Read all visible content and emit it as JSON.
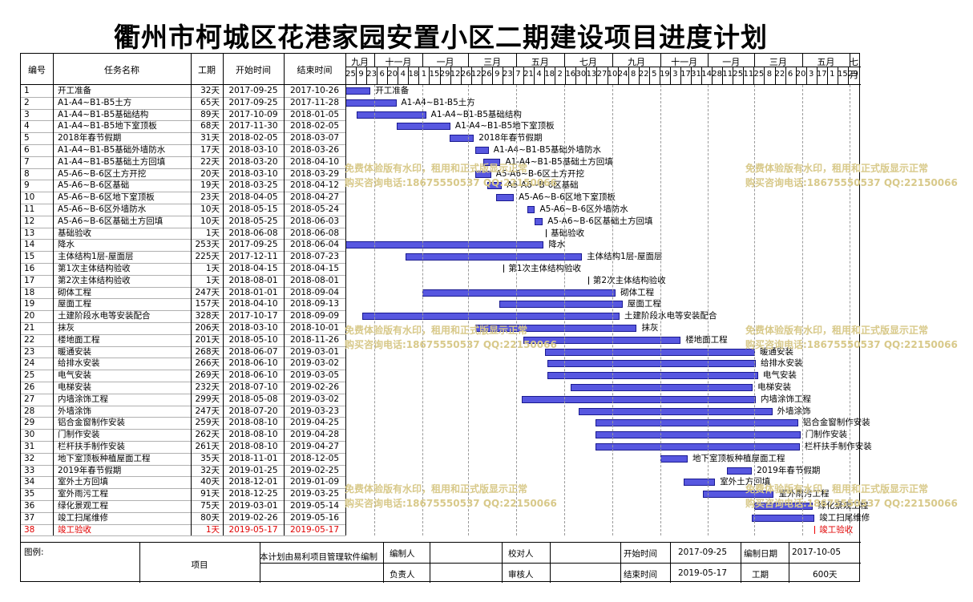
{
  "title": "衢州市柯城区花港家园安置小区二期建设项目进度计划",
  "columns": {
    "no": "编号",
    "name": "任务名称",
    "duration": "工期",
    "start": "开始时间",
    "end": "结束时间"
  },
  "timeline": {
    "months": [
      "九月",
      "十一月",
      "一月",
      "三月",
      "五月",
      "七月",
      "九月",
      "十一月",
      "一月",
      "三月",
      "五月",
      "七月"
    ],
    "days": [
      "25",
      "9",
      "23",
      "6",
      "20",
      "4",
      "18",
      "1",
      "15",
      "29",
      "12",
      "26",
      "12",
      "26",
      "9",
      "23",
      "7",
      "21",
      "4",
      "18",
      "2",
      "16",
      "30",
      "13",
      "27",
      "10",
      "24",
      "8",
      "22",
      "5",
      "19",
      "3",
      "17",
      "31",
      "14",
      "28",
      "11",
      "25",
      "11",
      "25",
      "8",
      "22",
      "6",
      "20",
      "3",
      "17",
      "1",
      "15",
      "29"
    ]
  },
  "tasks": [
    {
      "no": "1",
      "name": "开工准备",
      "duration": "32天",
      "start": "2017-09-25",
      "end": "2017-10-26",
      "label": "开工准备"
    },
    {
      "no": "2",
      "name": "A1-A4~B1-B5土方",
      "duration": "65天",
      "start": "2017-09-25",
      "end": "2017-11-28",
      "label": "A1-A4~B1-B5土方"
    },
    {
      "no": "3",
      "name": "A1-A4~B1-B5基础结构",
      "duration": "89天",
      "start": "2017-10-09",
      "end": "2018-01-05",
      "label": "A1-A4~B1-B5基础结构"
    },
    {
      "no": "4",
      "name": "A1-A4~B1-B5地下室顶板",
      "duration": "68天",
      "start": "2017-11-30",
      "end": "2018-02-05",
      "label": "A1-A4~B1-B5地下室顶板"
    },
    {
      "no": "5",
      "name": "2018年春节假期",
      "duration": "31天",
      "start": "2018-02-05",
      "end": "2018-03-07",
      "label": "2018年春节假期"
    },
    {
      "no": "6",
      "name": "A1-A4~B1-B5基础外墙防水",
      "duration": "17天",
      "start": "2018-03-10",
      "end": "2018-03-26",
      "label": "A1-A4~B1-B5基础外墙防水"
    },
    {
      "no": "7",
      "name": "A1-A4~B1-B5基础土方回填",
      "duration": "22天",
      "start": "2018-03-20",
      "end": "2018-04-10",
      "label": "A1-A4~B1-B5基础土方回填"
    },
    {
      "no": "8",
      "name": "A5-A6~B-6区土方开挖",
      "duration": "20天",
      "start": "2018-03-10",
      "end": "2018-03-29",
      "label": "A5-A6~B-6区土方开挖"
    },
    {
      "no": "9",
      "name": "A5-A6~B-6区基础",
      "duration": "19天",
      "start": "2018-03-25",
      "end": "2018-04-12",
      "label": "A5-A6~B-6区基础"
    },
    {
      "no": "10",
      "name": "A5-A6~B-6区地下室顶板",
      "duration": "23天",
      "start": "2018-04-05",
      "end": "2018-04-27",
      "label": "A5-A6~B-6区地下室顶板"
    },
    {
      "no": "11",
      "name": "A5-A6~B-6区外墙防水",
      "duration": "10天",
      "start": "2018-05-15",
      "end": "2018-05-24",
      "label": "A5-A6~B-6区外墙防水"
    },
    {
      "no": "12",
      "name": "A5-A6~B-6区基础土方回填",
      "duration": "10天",
      "start": "2018-05-25",
      "end": "2018-06-03",
      "label": "A5-A6~B-6区基础土方回填"
    },
    {
      "no": "13",
      "name": "基础验收",
      "duration": "1天",
      "start": "2018-06-08",
      "end": "2018-06-08",
      "label": "基础验收",
      "milestone": true
    },
    {
      "no": "14",
      "name": "降水",
      "duration": "253天",
      "start": "2017-09-25",
      "end": "2018-06-04",
      "label": "降水"
    },
    {
      "no": "15",
      "name": "主体结构1层-屋面层",
      "duration": "225天",
      "start": "2017-12-11",
      "end": "2018-07-23",
      "label": "主体结构1层-屋面层"
    },
    {
      "no": "16",
      "name": "第1次主体结构验收",
      "duration": "1天",
      "start": "2018-04-15",
      "end": "2018-04-15",
      "label": "第1次主体结构验收",
      "milestone": true
    },
    {
      "no": "17",
      "name": "第2次主体结构验收",
      "duration": "1天",
      "start": "2018-08-01",
      "end": "2018-08-01",
      "label": "第2次主体结构验收",
      "milestone": true
    },
    {
      "no": "18",
      "name": "砌体工程",
      "duration": "247天",
      "start": "2018-01-01",
      "end": "2018-09-04",
      "label": "砌体工程"
    },
    {
      "no": "19",
      "name": "屋面工程",
      "duration": "157天",
      "start": "2018-04-10",
      "end": "2018-09-13",
      "label": "屋面工程"
    },
    {
      "no": "20",
      "name": "土建阶段水电等安装配合",
      "duration": "328天",
      "start": "2017-10-17",
      "end": "2018-09-09",
      "label": "土建阶段水电等安装配合"
    },
    {
      "no": "21",
      "name": "抹灰",
      "duration": "206天",
      "start": "2018-03-10",
      "end": "2018-10-01",
      "label": "抹灰"
    },
    {
      "no": "22",
      "name": "楼地面工程",
      "duration": "201天",
      "start": "2018-05-10",
      "end": "2018-11-26",
      "label": "楼地面工程"
    },
    {
      "no": "23",
      "name": "暖通安装",
      "duration": "268天",
      "start": "2018-06-07",
      "end": "2019-03-01",
      "label": "暖通安装"
    },
    {
      "no": "24",
      "name": "给排水安装",
      "duration": "266天",
      "start": "2018-06-10",
      "end": "2019-03-02",
      "label": "给排水安装"
    },
    {
      "no": "25",
      "name": "电气安装",
      "duration": "269天",
      "start": "2018-06-10",
      "end": "2019-03-05",
      "label": "电气安装"
    },
    {
      "no": "26",
      "name": "电梯安装",
      "duration": "232天",
      "start": "2018-07-10",
      "end": "2019-02-26",
      "label": "电梯安装"
    },
    {
      "no": "27",
      "name": "内墙涂饰工程",
      "duration": "299天",
      "start": "2018-05-08",
      "end": "2019-03-02",
      "label": "内墙涂饰工程"
    },
    {
      "no": "28",
      "name": "外墙涂饰",
      "duration": "247天",
      "start": "2018-07-20",
      "end": "2019-03-23",
      "label": "外墙涂饰"
    },
    {
      "no": "29",
      "name": "铝合金窗制作安装",
      "duration": "259天",
      "start": "2018-08-10",
      "end": "2019-04-25",
      "label": "铝合金窗制作安装"
    },
    {
      "no": "30",
      "name": "门制作安装",
      "duration": "262天",
      "start": "2018-08-10",
      "end": "2019-04-28",
      "label": "门制作安装"
    },
    {
      "no": "31",
      "name": "栏杆扶手制作安装",
      "duration": "261天",
      "start": "2018-08-10",
      "end": "2019-04-27",
      "label": "栏杆扶手制作安装"
    },
    {
      "no": "32",
      "name": "地下室顶板种植屋面工程",
      "duration": "35天",
      "start": "2018-11-01",
      "end": "2018-12-05",
      "label": "地下室顶板种植屋面工程"
    },
    {
      "no": "33",
      "name": "2019年春节假期",
      "duration": "32天",
      "start": "2019-01-25",
      "end": "2019-02-25",
      "label": "2019年春节假期"
    },
    {
      "no": "34",
      "name": "室外土方回填",
      "duration": "40天",
      "start": "2018-12-01",
      "end": "2019-01-09",
      "label": "室外土方回填"
    },
    {
      "no": "35",
      "name": "室外雨污工程",
      "duration": "91天",
      "start": "2018-12-25",
      "end": "2019-03-25",
      "label": "室外雨污工程"
    },
    {
      "no": "36",
      "name": "绿化景观工程",
      "duration": "75天",
      "start": "2019-03-01",
      "end": "2019-05-14",
      "label": "绿化景观工程"
    },
    {
      "no": "37",
      "name": "竣工扫尾维修",
      "duration": "80天",
      "start": "2019-02-26",
      "end": "2019-05-16",
      "label": "竣工扫尾维修"
    },
    {
      "no": "38",
      "name": "竣工验收",
      "duration": "1天",
      "start": "2019-05-17",
      "end": "2019-05-17",
      "label": "竣工验收",
      "milestone": true,
      "highlight": true
    }
  ],
  "watermark": {
    "line1": "免费体验版有水印，租用和正式版显示正常",
    "line2": "购买咨询电话:18675550537 QQ:22150066"
  },
  "footer": {
    "legend_label": "图例:",
    "item_label": "项目",
    "software_note": "本计划由易利项目管理软件编制",
    "editor_label": "编制人",
    "checker_label": "校对人",
    "owner_label": "负责人",
    "reviewer_label": "审核人",
    "start_label": "开始时间",
    "start_value": "2017-09-25",
    "end_label": "结束时间",
    "end_value": "2019-05-17",
    "date_label": "编制日期",
    "date_value": "2017-10-05",
    "duration_label": "工期",
    "duration_value": "600天"
  },
  "colors": {
    "bar": "#5757e0",
    "bar_border": "#1a1a90",
    "highlight": "#e00000",
    "watermark": "#d8c98a"
  }
}
